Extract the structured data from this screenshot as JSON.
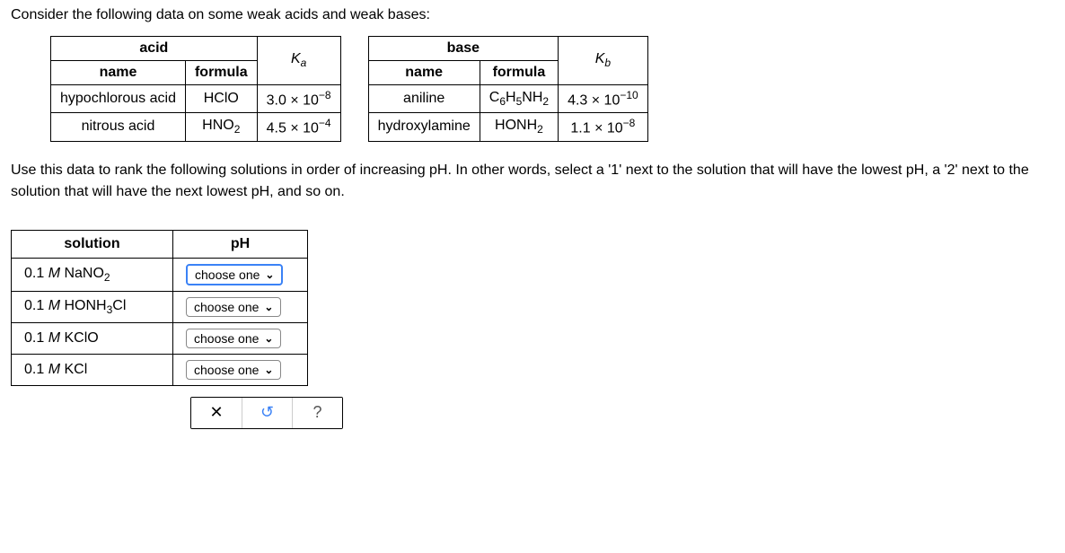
{
  "intro": "Consider the following data on some weak acids and weak bases:",
  "acid_table": {
    "group_header": "acid",
    "col_name": "name",
    "col_formula": "formula",
    "col_k": "K",
    "col_k_sub": "a",
    "rows": [
      {
        "name": "hypochlorous acid",
        "formula": "HClO",
        "k_coeff": "3.0 × 10",
        "k_exp": "−8"
      },
      {
        "name": "nitrous acid",
        "formula_base": "HNO",
        "formula_sub": "2",
        "k_coeff": "4.5 × 10",
        "k_exp": "−4"
      }
    ]
  },
  "base_table": {
    "group_header": "base",
    "col_name": "name",
    "col_formula": "formula",
    "col_k": "K",
    "col_k_sub": "b",
    "rows": [
      {
        "name": "aniline",
        "formula_pre": "C",
        "formula_sub1": "6",
        "formula_mid": "H",
        "formula_sub2": "5",
        "formula_post": "NH",
        "formula_sub3": "2",
        "k_coeff": "4.3 × 10",
        "k_exp": "−10"
      },
      {
        "name": "hydroxylamine",
        "formula_base": "HONH",
        "formula_sub": "2",
        "k_coeff": "1.1 × 10",
        "k_exp": "−8"
      }
    ]
  },
  "instructions": "Use this data to rank the following solutions in order of increasing pH. In other words, select a '1' next to the solution that will have the lowest pH, a '2' next to the solution that will have the next lowest pH, and so on.",
  "answer_table": {
    "col_solution": "solution",
    "col_ph": "pH",
    "dropdown_label": "choose one",
    "rows": [
      {
        "conc": "0.1 ",
        "m": "M",
        "sp": " NaNO",
        "sub": "2",
        "highlight": true
      },
      {
        "conc": "0.1 ",
        "m": "M",
        "sp": " HONH",
        "sub": "3",
        "post": "Cl",
        "highlight": false
      },
      {
        "conc": "0.1 ",
        "m": "M",
        "sp": " KClO",
        "highlight": false
      },
      {
        "conc": "0.1 ",
        "m": "M",
        "sp": " KCl",
        "highlight": false
      }
    ]
  },
  "toolbar": {
    "close": "✕",
    "reset": "↺",
    "help": "?"
  },
  "colors": {
    "highlight_border": "#3b82f6"
  }
}
